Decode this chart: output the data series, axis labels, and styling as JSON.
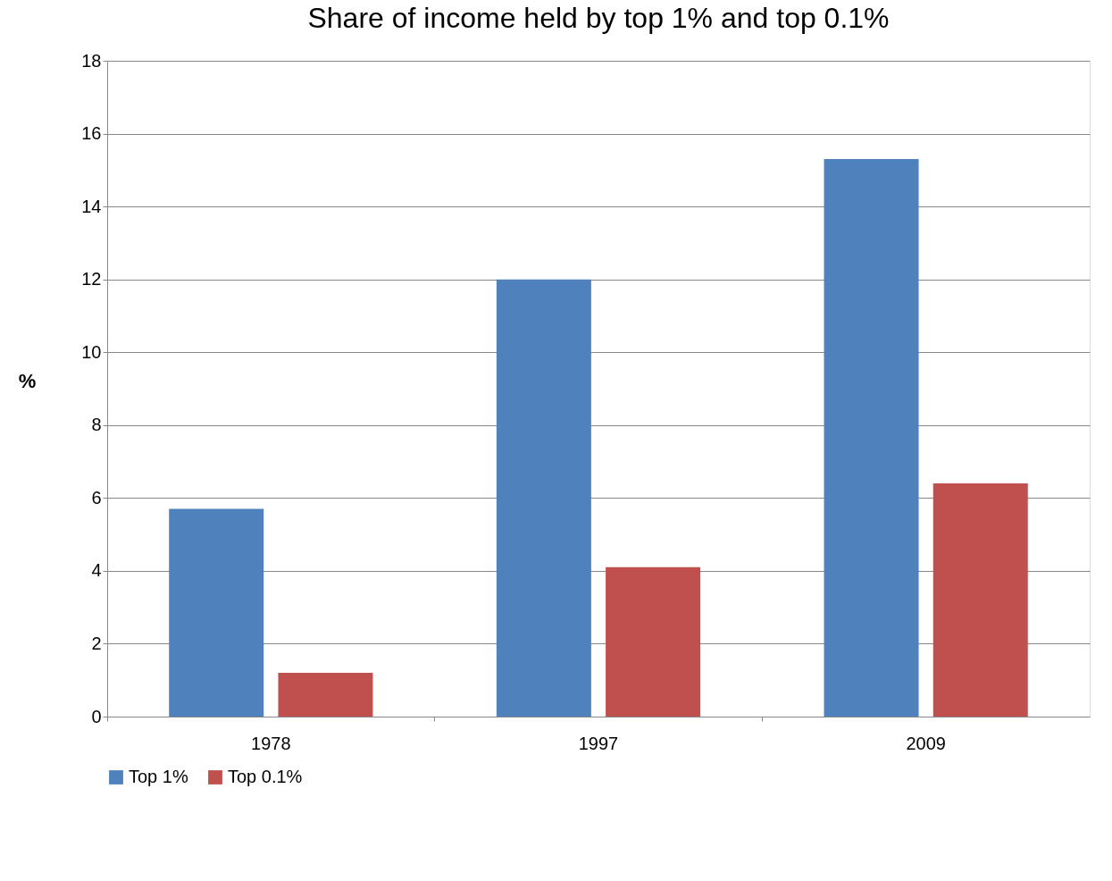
{
  "chart_data": {
    "type": "bar",
    "title": "Share of income held by top 1% and top 0.1%",
    "ylabel": "%",
    "categories": [
      "1978",
      "1997",
      "2009"
    ],
    "series": [
      {
        "name": "Top 1%",
        "color": "#4f81bd",
        "values": [
          5.7,
          12.0,
          15.3
        ]
      },
      {
        "name": "Top 0.1%",
        "color": "#c0504d",
        "values": [
          1.2,
          4.1,
          6.4
        ]
      }
    ],
    "ylim": [
      0,
      18
    ],
    "yticks": [
      0,
      2,
      4,
      6,
      8,
      10,
      12,
      14,
      16,
      18
    ],
    "grid": "y",
    "legend": "bottom"
  }
}
